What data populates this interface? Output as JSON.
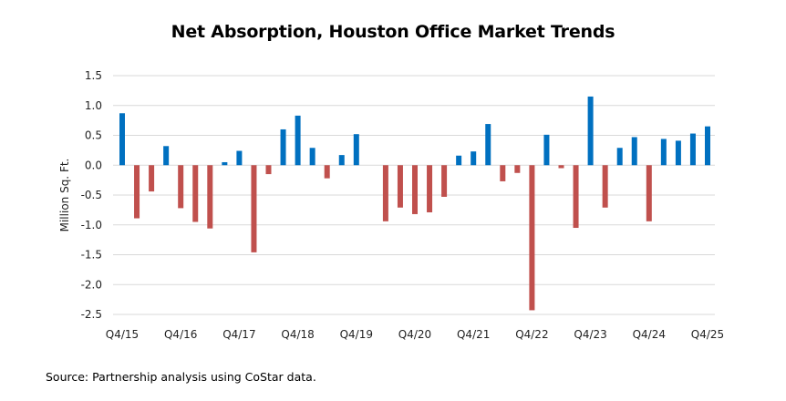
{
  "chart_data": {
    "type": "bar",
    "title": "Net Absorption, Houston Office Market Trends",
    "xlabel": "",
    "ylabel": "Million Sq. Ft.",
    "ylim": [
      -2.5,
      1.5
    ],
    "yticks": [
      1.5,
      1.0,
      0.5,
      0.0,
      -0.5,
      -1.0,
      -1.5,
      -2.0,
      -2.5
    ],
    "ytick_labels": [
      "1.5",
      "1.0",
      "0.5",
      "0.0",
      "-0.5",
      "-1.0",
      "-1.5",
      "-2.0",
      "-2.5"
    ],
    "grid": true,
    "legend": "none",
    "positive_color": "#0070C0",
    "negative_color": "#C0504D",
    "xtick_labels": [
      "Q4/15",
      "Q4/16",
      "Q4/17",
      "Q4/18",
      "Q4/19",
      "Q4/20",
      "Q4/21",
      "Q4/22",
      "Q4/23",
      "Q4/24",
      "Q4/25"
    ],
    "xtick_every": 4,
    "categories": [
      "Q4/15",
      "Q1/16",
      "Q2/16",
      "Q3/16",
      "Q4/16",
      "Q1/17",
      "Q2/17",
      "Q3/17",
      "Q4/17",
      "Q1/18",
      "Q2/18",
      "Q3/18",
      "Q4/18",
      "Q1/19",
      "Q2/19",
      "Q3/19",
      "Q4/19",
      "Q1/20",
      "Q2/20",
      "Q3/20",
      "Q4/20",
      "Q1/21",
      "Q2/21",
      "Q3/21",
      "Q4/21",
      "Q1/22",
      "Q2/22",
      "Q3/22",
      "Q4/22",
      "Q1/23",
      "Q2/23",
      "Q3/23",
      "Q4/23",
      "Q1/24",
      "Q2/24",
      "Q3/24",
      "Q4/24",
      "Q1/25",
      "Q2/25",
      "Q3/25",
      "Q4/25"
    ],
    "values": [
      0.87,
      -0.89,
      -0.44,
      0.32,
      -0.72,
      -0.95,
      -1.06,
      0.05,
      0.24,
      -1.46,
      -0.15,
      0.6,
      0.83,
      0.29,
      -0.22,
      0.17,
      0.52,
      0.0,
      -0.94,
      -0.71,
      -0.82,
      -0.79,
      -0.53,
      0.16,
      0.23,
      0.69,
      -0.27,
      -0.13,
      -2.43,
      0.51,
      -0.05,
      -1.05,
      1.15,
      -0.71,
      0.29,
      0.47,
      -0.94,
      0.44,
      0.41,
      0.53,
      0.65
    ]
  },
  "footer": {
    "source": "Source: Partnership analysis using CoStar data."
  }
}
